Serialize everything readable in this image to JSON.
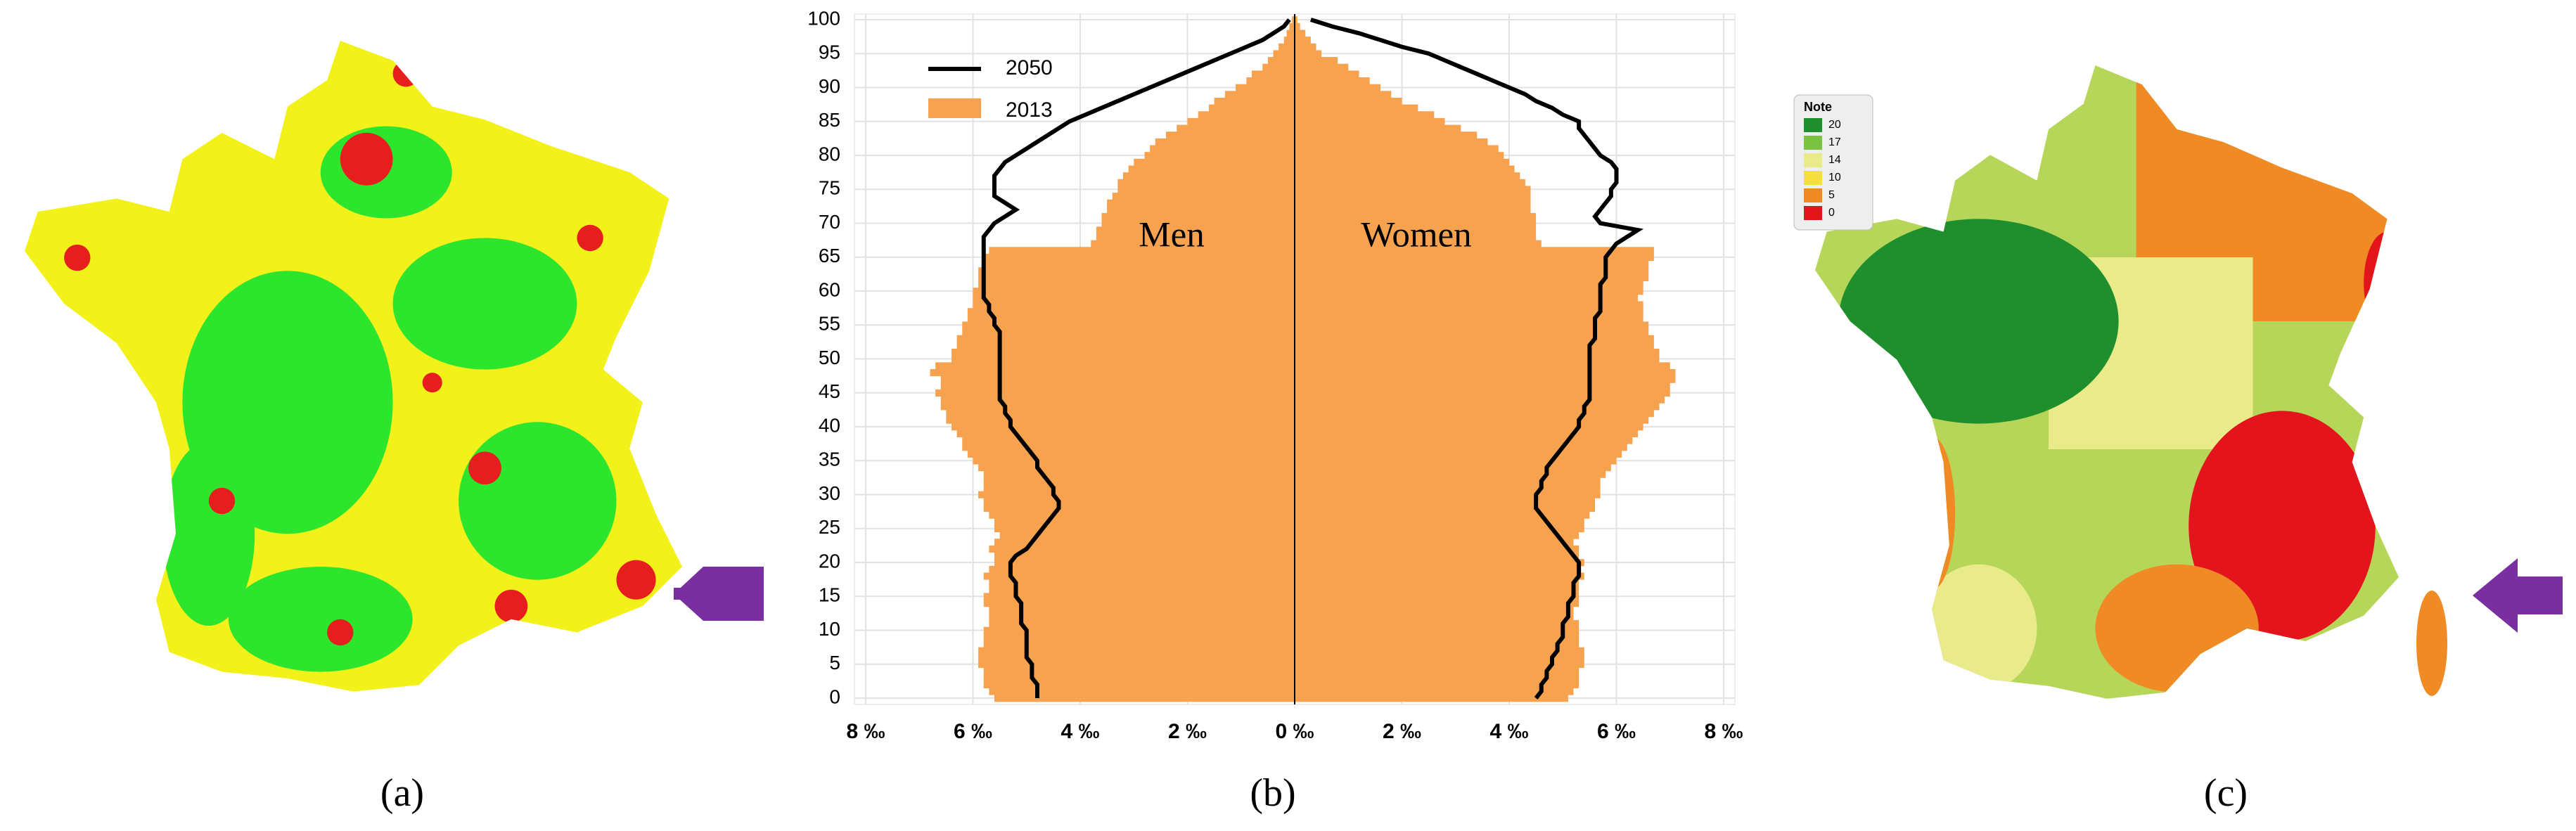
{
  "captions": [
    "(a)",
    "(b)",
    "(c)"
  ],
  "map_c": {
    "legend_title": "Note",
    "legend_labels": [
      "20",
      "17",
      "14",
      "10",
      "5",
      "0"
    ],
    "legend_colors": [
      "#1f8f2e",
      "#7cc242",
      "#e9eb8a",
      "#f3e03a",
      "#f08a24",
      "#e3141c"
    ]
  },
  "chart_data": {
    "type": "pyramid",
    "men_label": "Men",
    "women_label": "Women",
    "ages": [
      0,
      1,
      2,
      3,
      4,
      5,
      6,
      7,
      8,
      9,
      10,
      11,
      12,
      13,
      14,
      15,
      16,
      17,
      18,
      19,
      20,
      21,
      22,
      23,
      24,
      25,
      26,
      27,
      28,
      29,
      30,
      31,
      32,
      33,
      34,
      35,
      36,
      37,
      38,
      39,
      40,
      41,
      42,
      43,
      44,
      45,
      46,
      47,
      48,
      49,
      50,
      51,
      52,
      53,
      54,
      55,
      56,
      57,
      58,
      59,
      60,
      61,
      62,
      63,
      64,
      65,
      66,
      67,
      68,
      69,
      70,
      71,
      72,
      73,
      74,
      75,
      76,
      77,
      78,
      79,
      80,
      81,
      82,
      83,
      84,
      85,
      86,
      87,
      88,
      89,
      90,
      91,
      92,
      93,
      94,
      95,
      96,
      97,
      98,
      99,
      100
    ],
    "series": [
      {
        "name": "2050",
        "color": "#000000",
        "mark": "line",
        "men": [
          4.8,
          4.8,
          4.8,
          4.9,
          4.9,
          4.9,
          5.0,
          5.0,
          5.0,
          5.0,
          5.0,
          5.1,
          5.1,
          5.1,
          5.1,
          5.2,
          5.2,
          5.2,
          5.3,
          5.3,
          5.3,
          5.2,
          5.0,
          4.9,
          4.8,
          4.7,
          4.6,
          4.5,
          4.4,
          4.4,
          4.5,
          4.5,
          4.6,
          4.7,
          4.8,
          4.8,
          4.9,
          5.0,
          5.1,
          5.2,
          5.3,
          5.3,
          5.4,
          5.4,
          5.5,
          5.5,
          5.5,
          5.5,
          5.5,
          5.5,
          5.5,
          5.5,
          5.5,
          5.5,
          5.5,
          5.6,
          5.6,
          5.7,
          5.7,
          5.8,
          5.8,
          5.8,
          5.8,
          5.8,
          5.8,
          5.8,
          5.8,
          5.8,
          5.8,
          5.7,
          5.6,
          5.4,
          5.2,
          5.4,
          5.6,
          5.6,
          5.6,
          5.6,
          5.5,
          5.4,
          5.2,
          5.0,
          4.8,
          4.6,
          4.4,
          4.2,
          3.9,
          3.6,
          3.3,
          3.0,
          2.7,
          2.4,
          2.1,
          1.8,
          1.5,
          1.2,
          0.9,
          0.6,
          0.4,
          0.2,
          0.1
        ],
        "women": [
          4.5,
          4.6,
          4.6,
          4.7,
          4.7,
          4.8,
          4.8,
          4.9,
          4.9,
          5.0,
          5.0,
          5.0,
          5.1,
          5.1,
          5.1,
          5.2,
          5.2,
          5.2,
          5.3,
          5.3,
          5.3,
          5.2,
          5.1,
          5.0,
          4.9,
          4.8,
          4.7,
          4.6,
          4.5,
          4.5,
          4.5,
          4.6,
          4.6,
          4.7,
          4.7,
          4.8,
          4.9,
          5.0,
          5.1,
          5.2,
          5.3,
          5.3,
          5.4,
          5.4,
          5.5,
          5.5,
          5.5,
          5.5,
          5.5,
          5.5,
          5.5,
          5.5,
          5.5,
          5.6,
          5.6,
          5.6,
          5.6,
          5.7,
          5.7,
          5.7,
          5.7,
          5.7,
          5.8,
          5.8,
          5.8,
          5.8,
          5.9,
          6.0,
          6.2,
          6.4,
          5.7,
          5.6,
          5.7,
          5.8,
          5.9,
          5.9,
          6.0,
          6.0,
          6.0,
          5.9,
          5.7,
          5.6,
          5.5,
          5.4,
          5.3,
          5.3,
          5.0,
          4.8,
          4.5,
          4.3,
          4.0,
          3.7,
          3.4,
          3.1,
          2.8,
          2.5,
          2.0,
          1.6,
          1.2,
          0.7,
          0.3
        ]
      },
      {
        "name": "2013",
        "color": "#f7a24f",
        "mark": "bar",
        "men": [
          5.6,
          5.7,
          5.8,
          5.8,
          5.8,
          5.9,
          5.9,
          5.9,
          5.8,
          5.8,
          5.8,
          5.7,
          5.7,
          5.7,
          5.8,
          5.8,
          5.7,
          5.7,
          5.8,
          5.7,
          5.6,
          5.6,
          5.7,
          5.6,
          5.5,
          5.6,
          5.6,
          5.7,
          5.8,
          5.8,
          5.9,
          5.8,
          5.8,
          5.8,
          5.9,
          6.0,
          6.1,
          6.2,
          6.2,
          6.3,
          6.4,
          6.5,
          6.5,
          6.6,
          6.6,
          6.7,
          6.6,
          6.6,
          6.8,
          6.7,
          6.4,
          6.4,
          6.3,
          6.3,
          6.2,
          6.2,
          6.1,
          6.1,
          6.0,
          6.0,
          6.0,
          5.9,
          5.9,
          5.9,
          5.8,
          5.8,
          5.7,
          3.8,
          3.7,
          3.7,
          3.6,
          3.6,
          3.5,
          3.5,
          3.4,
          3.3,
          3.3,
          3.2,
          3.1,
          3.0,
          2.8,
          2.7,
          2.6,
          2.4,
          2.2,
          2.0,
          1.8,
          1.6,
          1.5,
          1.3,
          1.1,
          0.9,
          0.8,
          0.6,
          0.5,
          0.4,
          0.3,
          0.2,
          0.15,
          0.1,
          0.05
        ],
        "women": [
          5.1,
          5.2,
          5.3,
          5.3,
          5.3,
          5.4,
          5.4,
          5.4,
          5.3,
          5.3,
          5.3,
          5.3,
          5.2,
          5.2,
          5.3,
          5.3,
          5.3,
          5.3,
          5.4,
          5.3,
          5.4,
          5.3,
          5.3,
          5.2,
          5.3,
          5.4,
          5.4,
          5.5,
          5.6,
          5.6,
          5.7,
          5.7,
          5.7,
          5.8,
          5.9,
          6.0,
          6.1,
          6.2,
          6.3,
          6.4,
          6.5,
          6.6,
          6.7,
          6.8,
          6.9,
          7.0,
          7.0,
          7.1,
          7.1,
          7.0,
          6.8,
          6.8,
          6.7,
          6.7,
          6.6,
          6.6,
          6.5,
          6.5,
          6.5,
          6.4,
          6.5,
          6.5,
          6.6,
          6.6,
          6.6,
          6.7,
          6.7,
          4.6,
          4.5,
          4.5,
          4.5,
          4.5,
          4.4,
          4.4,
          4.4,
          4.4,
          4.3,
          4.2,
          4.1,
          4.0,
          3.9,
          3.8,
          3.6,
          3.4,
          3.1,
          2.8,
          2.6,
          2.3,
          2.0,
          1.8,
          1.6,
          1.4,
          1.2,
          1.0,
          0.8,
          0.5,
          0.4,
          0.3,
          0.2,
          0.1,
          0.05
        ]
      }
    ],
    "xlim": [
      -8,
      8
    ],
    "xticks": [
      {
        "value": -8,
        "label": "8 ‰"
      },
      {
        "value": -6,
        "label": "6 ‰"
      },
      {
        "value": -4,
        "label": "4 ‰"
      },
      {
        "value": -2,
        "label": "2 ‰"
      },
      {
        "value": 0,
        "label": "0 ‰"
      },
      {
        "value": 2,
        "label": "2 ‰"
      },
      {
        "value": 4,
        "label": "4 ‰"
      },
      {
        "value": 6,
        "label": "6 ‰"
      },
      {
        "value": 8,
        "label": "8 ‰"
      }
    ],
    "ylim": [
      0,
      100
    ],
    "yticks": [
      0,
      5,
      10,
      15,
      20,
      25,
      30,
      35,
      40,
      45,
      50,
      55,
      60,
      65,
      70,
      75,
      80,
      85,
      90,
      95,
      100
    ],
    "grid": true
  }
}
